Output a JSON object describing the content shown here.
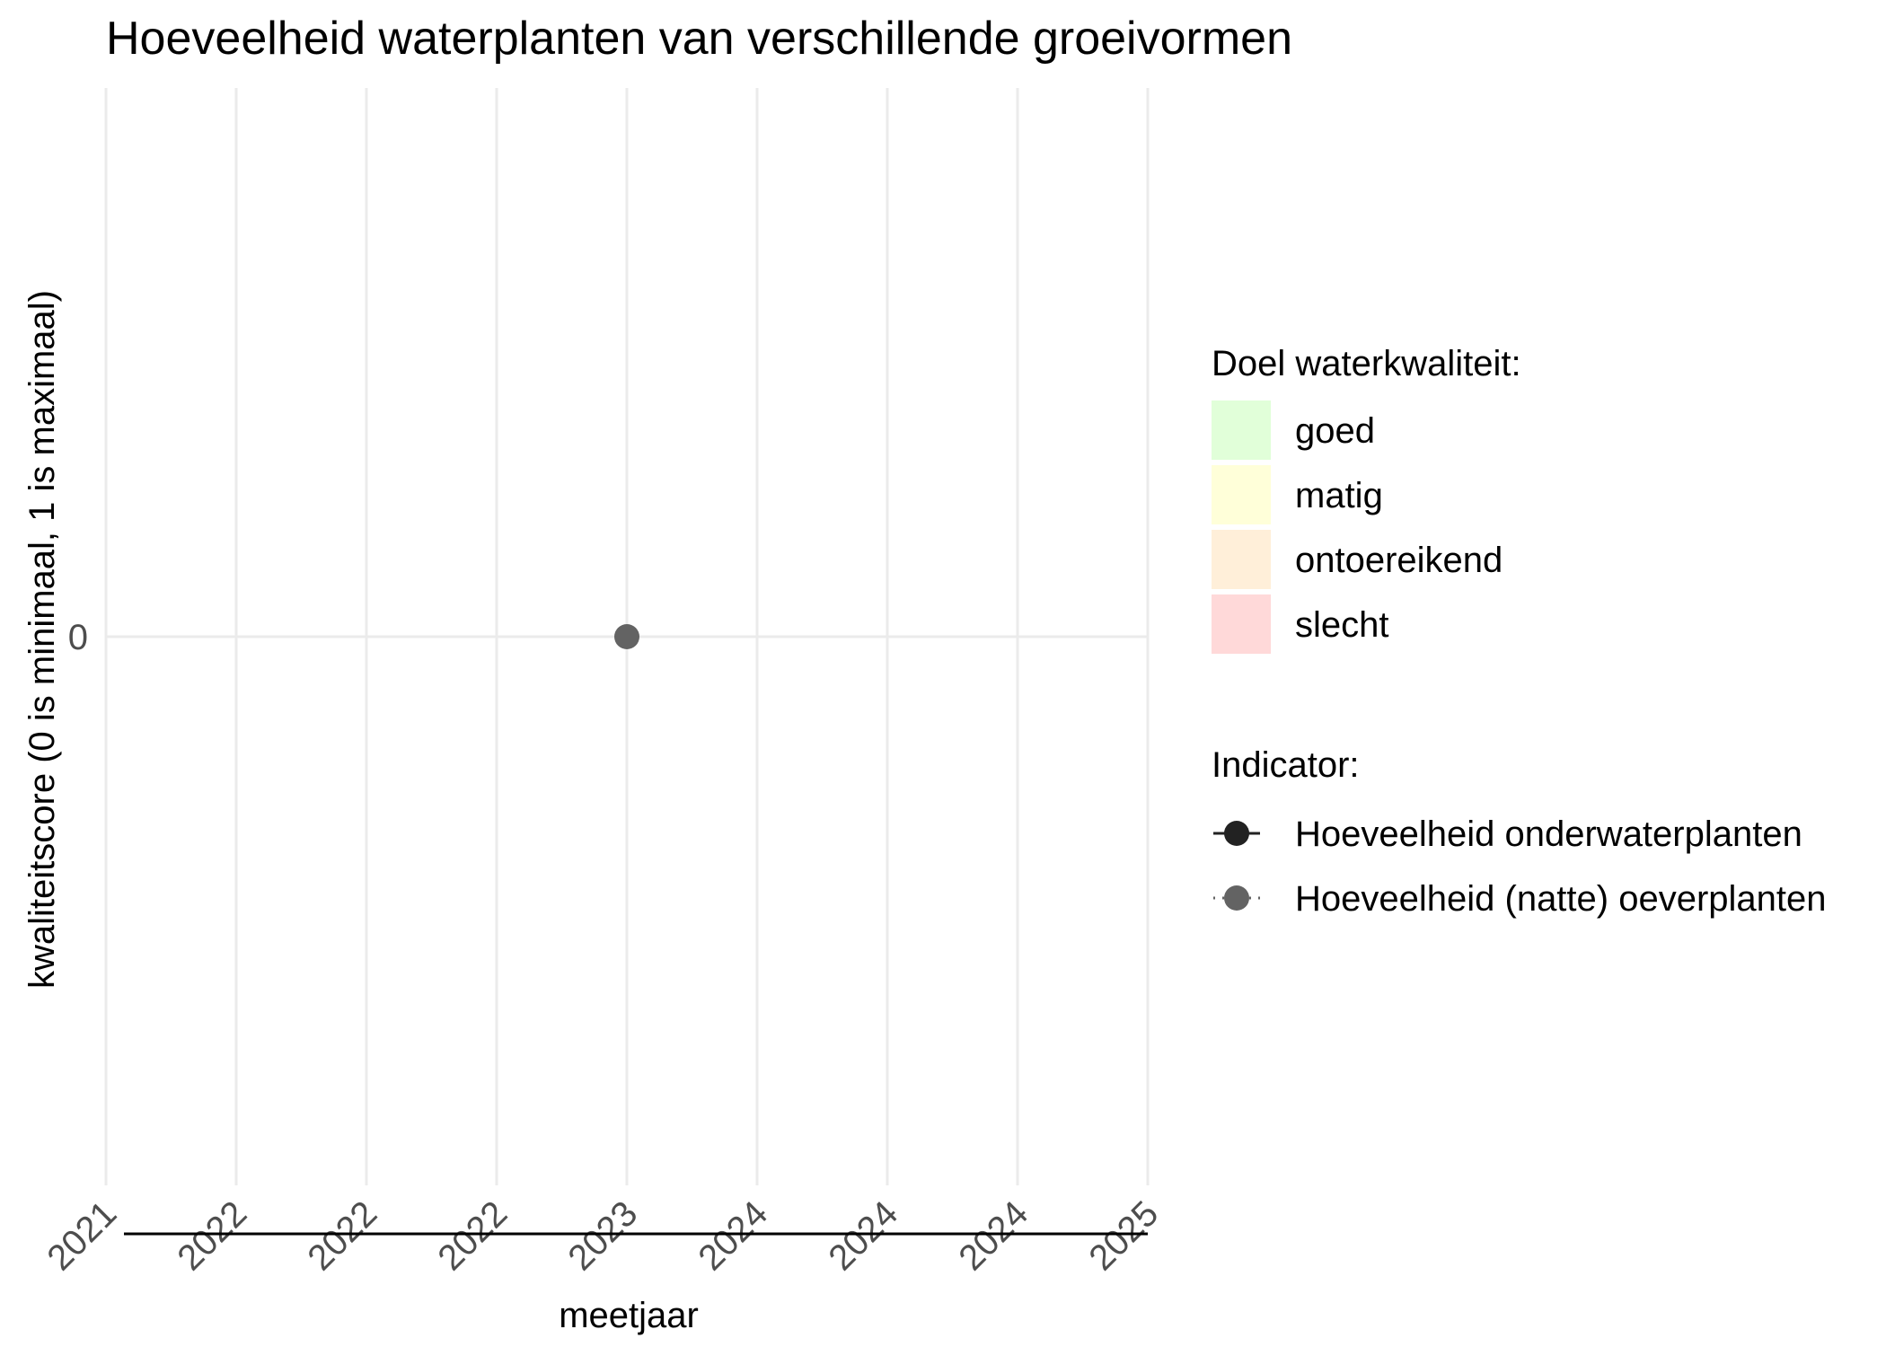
{
  "chart_data": {
    "type": "line",
    "title": "Hoeveelheid waterplanten van verschillende groeivormen",
    "xlabel": "meetjaar",
    "ylabel": "kwaliteitscore (0 is minimaal, 1 is maximaal)",
    "x_tick_labels": [
      "2021",
      "2022",
      "2022",
      "2022",
      "2023",
      "2024",
      "2024",
      "2024",
      "2025"
    ],
    "y_tick_labels": [
      "0"
    ],
    "y_ticks": [
      0
    ],
    "ylim": [
      -0.5,
      0.5
    ],
    "grid": true,
    "legend_position": "right",
    "background_legend": {
      "title": "Doel waterkwaliteit:",
      "items": [
        {
          "label": "goed",
          "color": "#e1ffd9"
        },
        {
          "label": "matig",
          "color": "#ffffd9"
        },
        {
          "label": "ontoereikend",
          "color": "#ffefd9"
        },
        {
          "label": "slecht",
          "color": "#ffd9d9"
        }
      ]
    },
    "series_legend": {
      "title": "Indicator:",
      "items": [
        {
          "label": "Hoeveelheid onderwaterplanten",
          "color": "#222222",
          "linetype": "solid"
        },
        {
          "label": "Hoeveelheid (natte) oeverplanten",
          "color": "#636363",
          "linetype": "dotted"
        }
      ]
    },
    "series": [
      {
        "name": "Hoeveelheid (natte) oeverplanten",
        "color": "#636363",
        "points": [
          {
            "x_index": 4,
            "x": "2023",
            "y": 0
          }
        ]
      }
    ]
  }
}
